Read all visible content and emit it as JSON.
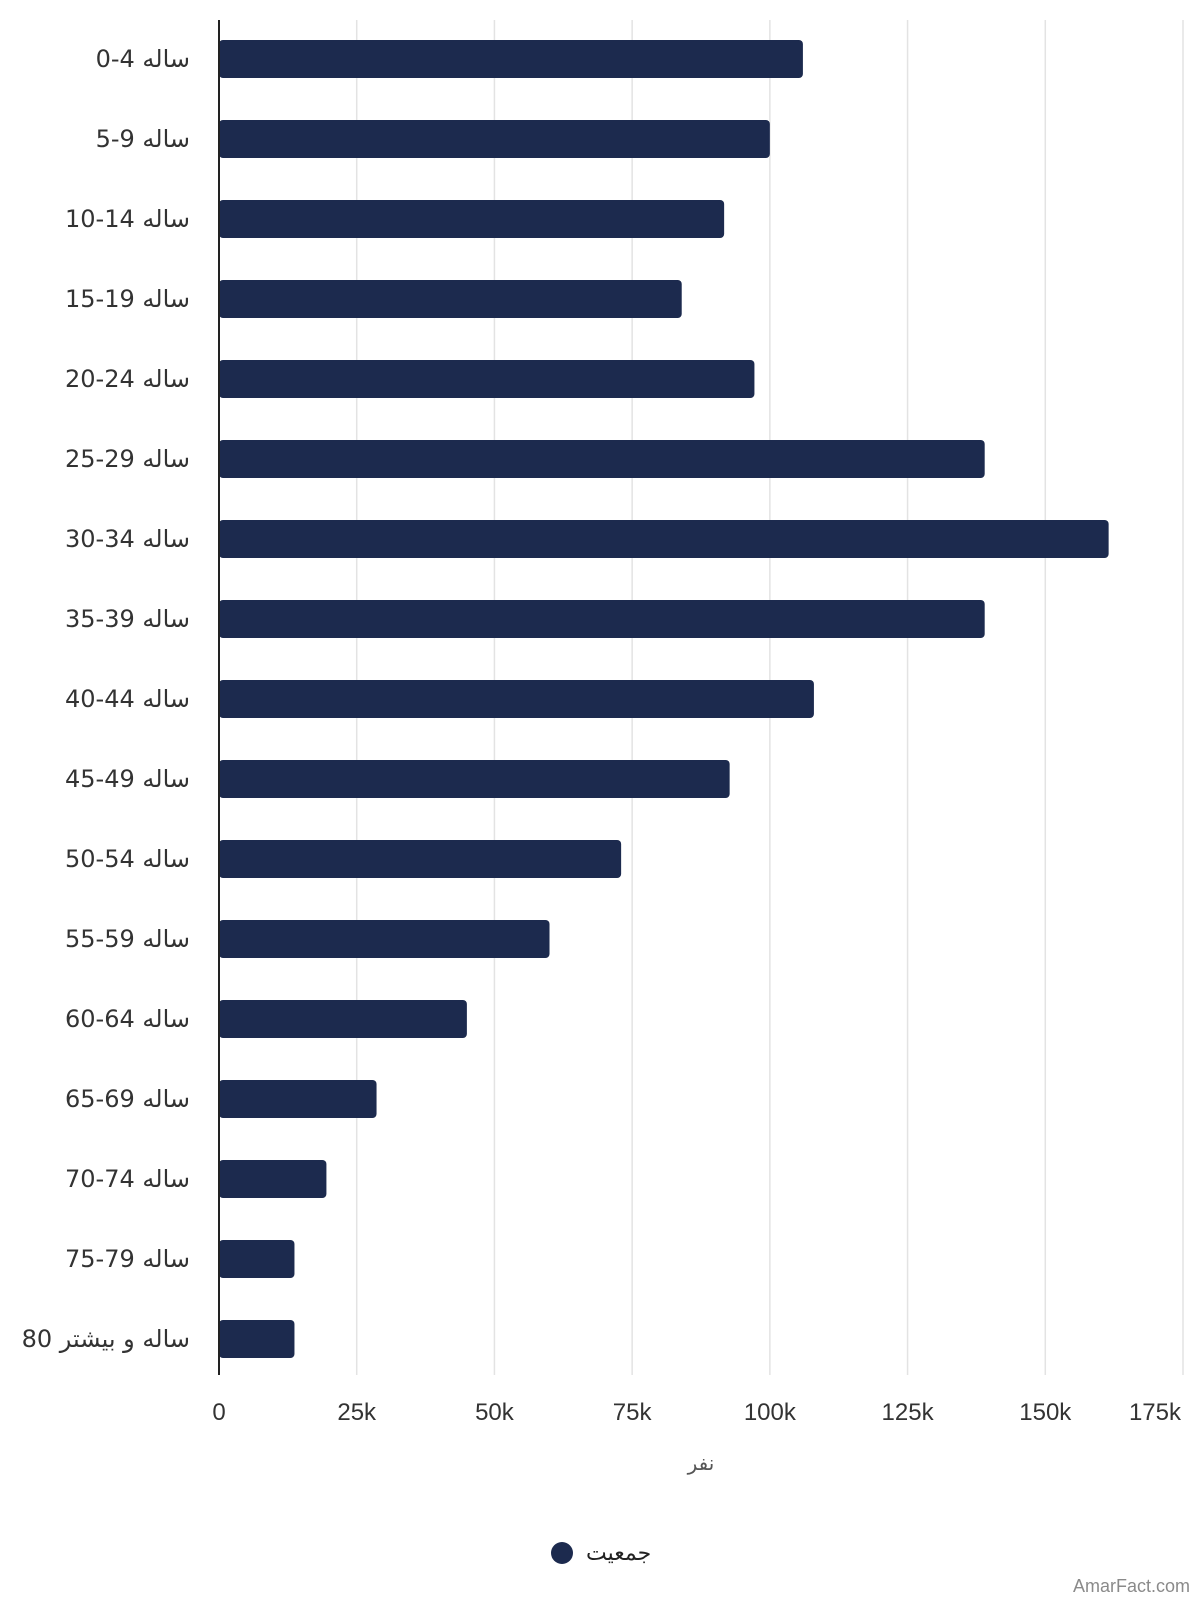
{
  "chart_data": {
    "type": "bar",
    "orientation": "horizontal",
    "categories": [
      "0-4 ساله",
      "5-9 ساله",
      "10-14 ساله",
      "15-19 ساله",
      "20-24 ساله",
      "25-29 ساله",
      "30-34 ساله",
      "35-39 ساله",
      "40-44 ساله",
      "45-49 ساله",
      "50-54 ساله",
      "55-59 ساله",
      "60-64 ساله",
      "65-69 ساله",
      "70-74 ساله",
      "75-79 ساله",
      "80 ساله و بیشتر"
    ],
    "series": [
      {
        "name": "جمعیت",
        "color": "#1c2a4e",
        "values": [
          106000,
          100000,
          91700,
          84000,
          97200,
          139000,
          161500,
          139000,
          108000,
          92700,
          73000,
          60000,
          45000,
          28600,
          19500,
          13700,
          13700
        ]
      }
    ],
    "xlabel": "نفر",
    "ylabel": "",
    "xlim": [
      0,
      175000
    ],
    "x_ticks": [
      0,
      25000,
      50000,
      75000,
      100000,
      125000,
      150000,
      175000
    ],
    "x_tick_labels": [
      "0",
      "25k",
      "50k",
      "75k",
      "100k",
      "125k",
      "150k",
      "175k"
    ],
    "grid": true,
    "legend": "bottom"
  },
  "colors": {
    "bar": "#1c2a4e",
    "grid": "#e3e3e3",
    "axis": "#222222"
  },
  "watermark": "AmarFact.com"
}
